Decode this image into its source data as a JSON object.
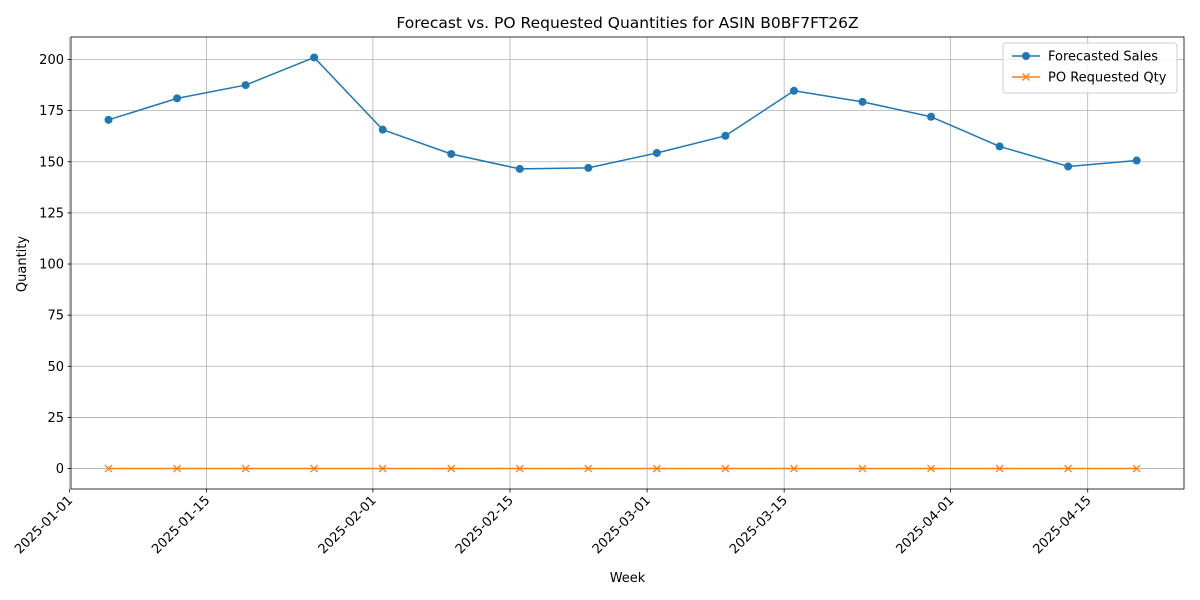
{
  "chart_data": {
    "type": "line",
    "title": "Forecast vs. PO Requested Quantities for ASIN B0BF7FT26Z",
    "xlabel": "Week",
    "ylabel": "Quantity",
    "x": [
      "2025-01-05",
      "2025-01-12",
      "2025-01-19",
      "2025-01-26",
      "2025-02-02",
      "2025-02-09",
      "2025-02-16",
      "2025-02-23",
      "2025-03-02",
      "2025-03-09",
      "2025-03-16",
      "2025-03-23",
      "2025-03-30",
      "2025-04-06",
      "2025-04-13",
      "2025-04-20"
    ],
    "series": [
      {
        "name": "Forecasted Sales",
        "color": "#1f77b4",
        "marker": "circle",
        "values": [
          170.5,
          181.0,
          187.5,
          201.0,
          165.7,
          153.8,
          146.5,
          147.0,
          154.3,
          162.7,
          184.7,
          179.3,
          172.0,
          157.5,
          147.7,
          150.6
        ]
      },
      {
        "name": "PO Requested Qty",
        "color": "#ff7f0e",
        "marker": "x",
        "values": [
          0,
          0,
          0,
          0,
          0,
          0,
          0,
          0,
          0,
          0,
          0,
          0,
          0,
          0,
          0,
          0
        ]
      }
    ],
    "ylim": [
      -10,
      211
    ],
    "yticks": [
      0,
      25,
      50,
      75,
      100,
      125,
      150,
      175,
      200
    ],
    "xlim": [
      "2025-01-01T04:00",
      "2025-04-24T20:00"
    ],
    "xticks": [
      "2025-01-01",
      "2025-01-15",
      "2025-02-01",
      "2025-02-15",
      "2025-03-01",
      "2025-03-15",
      "2025-04-01",
      "2025-04-15"
    ],
    "grid": true,
    "legend_position": "top-right"
  }
}
